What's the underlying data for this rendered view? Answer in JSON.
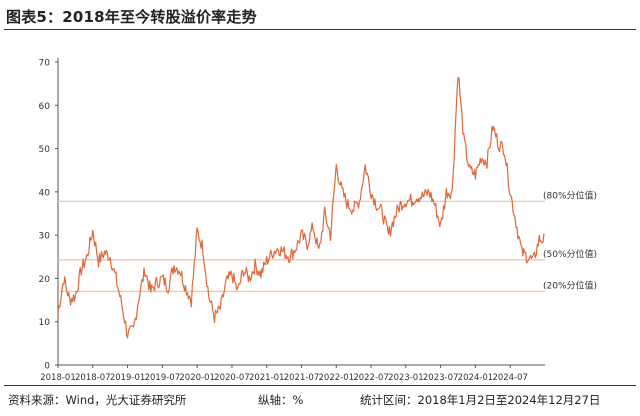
{
  "title": "图表5：2018年至今转股溢价率走势",
  "footer": {
    "source": "资料来源：Wind，光大证券研究所",
    "unit": "纵轴：%",
    "range": "统计区间：2018年1月2日至2024年12月27日"
  },
  "chart_data": {
    "type": "line",
    "title": "图表5：2018年至今转股溢价率走势",
    "xlabel": "",
    "ylabel": "",
    "ylim": [
      0,
      70
    ],
    "yticks": [
      0,
      10,
      20,
      30,
      40,
      50,
      60,
      70
    ],
    "xlim": [
      "2018-01",
      "2024-12"
    ],
    "xticks": [
      "2018-01",
      "2018-07",
      "2019-01",
      "2019-07",
      "2020-01",
      "2020-07",
      "2021-01",
      "2021-07",
      "2022-01",
      "2022-07",
      "2023-01",
      "2023-07",
      "2024-01",
      "2024-07"
    ],
    "grid": false,
    "line_color": "#E0683A",
    "reference_lines": [
      {
        "label": "(80%分位值)",
        "value": 37.8,
        "color": "#F2C8A8"
      },
      {
        "label": "(50%分位值)",
        "value": 24.3,
        "color": "#F2C8A8"
      },
      {
        "label": "(20%分位值)",
        "value": 17.0,
        "color": "#F2C8A8"
      }
    ],
    "series": [
      {
        "x": [
          "2018-01",
          "2018-02",
          "2018-03",
          "2018-04",
          "2018-05",
          "2018-06",
          "2018-07",
          "2018-08",
          "2018-09",
          "2018-10",
          "2018-11",
          "2018-12",
          "2019-01",
          "2019-02",
          "2019-03",
          "2019-04",
          "2019-05",
          "2019-06",
          "2019-07",
          "2019-08",
          "2019-09",
          "2019-10",
          "2019-11",
          "2019-12",
          "2020-01",
          "2020-02",
          "2020-03",
          "2020-04",
          "2020-05",
          "2020-06",
          "2020-07",
          "2020-08",
          "2020-09",
          "2020-10",
          "2020-11",
          "2020-12",
          "2021-01",
          "2021-02",
          "2021-03",
          "2021-04",
          "2021-05",
          "2021-06",
          "2021-07",
          "2021-08",
          "2021-09",
          "2021-10",
          "2021-11",
          "2021-12",
          "2022-01",
          "2022-02",
          "2022-03",
          "2022-04",
          "2022-05",
          "2022-06",
          "2022-07",
          "2022-08",
          "2022-09",
          "2022-10",
          "2022-11",
          "2022-12",
          "2023-01",
          "2023-02",
          "2023-03",
          "2023-04",
          "2023-05",
          "2023-06",
          "2023-07",
          "2023-08",
          "2023-09",
          "2023-10",
          "2023-11",
          "2023-12",
          "2024-01",
          "2024-02",
          "2024-03",
          "2024-04",
          "2024-05",
          "2024-06",
          "2024-07",
          "2024-08",
          "2024-09",
          "2024-10",
          "2024-11",
          "2024-12"
        ],
        "values": [
          12,
          20,
          15,
          16,
          22,
          25,
          31,
          24,
          26,
          25,
          20,
          14,
          7,
          8,
          16,
          22,
          17,
          19,
          20,
          18,
          23,
          22,
          18,
          15,
          31,
          27,
          16,
          11,
          13,
          19,
          21,
          17,
          22,
          20,
          23,
          21,
          24,
          26,
          27,
          26,
          25,
          27,
          30,
          28,
          32,
          26,
          35,
          30,
          46,
          40,
          37,
          36,
          38,
          46,
          40,
          37,
          35,
          30,
          34,
          37,
          38,
          38,
          39,
          39,
          40,
          37,
          32,
          40,
          40,
          68,
          52,
          45,
          44,
          48,
          47,
          55,
          51,
          50,
          40,
          33,
          26,
          25,
          24,
          29
        ]
      }
    ]
  }
}
